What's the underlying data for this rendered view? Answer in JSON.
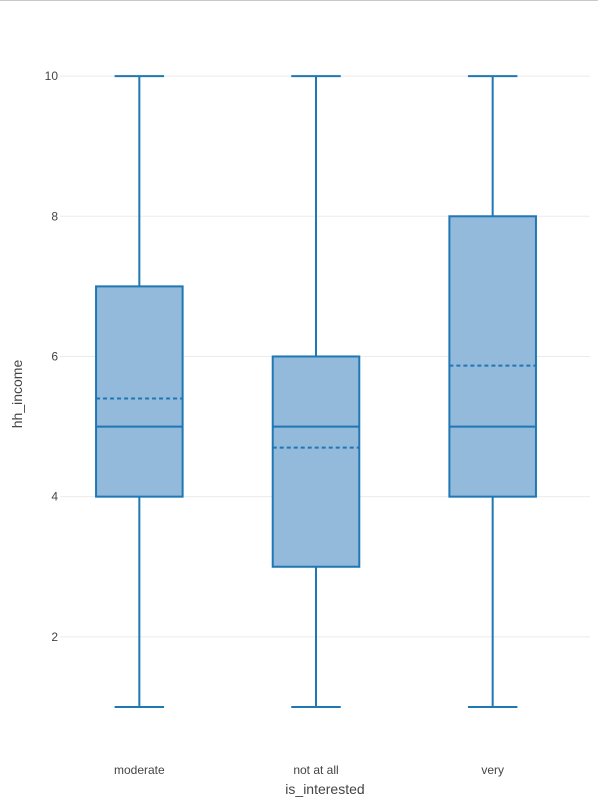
{
  "chart_data": {
    "type": "box",
    "xlabel": "is_interested",
    "ylabel": "hh_income",
    "categories": [
      "moderate",
      "not at all",
      "very"
    ],
    "ylim": [
      0.5,
      10.8
    ],
    "yticks": [
      2,
      4,
      6,
      8,
      10
    ],
    "grid": true,
    "boxes": [
      {
        "category": "moderate",
        "min": 1,
        "q1": 4,
        "median": 5,
        "q3": 7,
        "max": 10,
        "mean": 5.4
      },
      {
        "category": "not at all",
        "min": 1,
        "q1": 3,
        "median": 5,
        "q3": 6,
        "max": 10,
        "mean": 4.7
      },
      {
        "category": "very",
        "min": 1,
        "q1": 4,
        "median": 5,
        "q3": 8,
        "max": 10,
        "mean": 5.87
      }
    ],
    "colors": {
      "line": "#1f77b4",
      "fill": "#93b9db",
      "grid": "#ebebeb",
      "text": "#444444"
    }
  }
}
